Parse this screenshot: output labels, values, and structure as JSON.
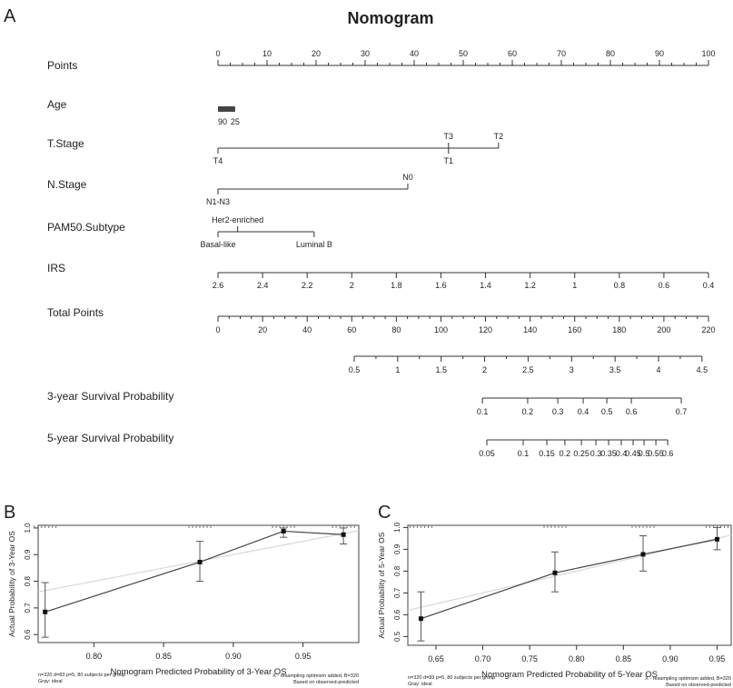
{
  "panels": {
    "a": "A",
    "b": "B",
    "c": "C"
  },
  "chart_data": [
    {
      "type": "nomogram",
      "title": "Nomogram",
      "points_axis": {
        "label": "Points",
        "min": 0,
        "max": 100,
        "ticks": [
          0,
          10,
          20,
          30,
          40,
          50,
          60,
          70,
          80,
          90,
          100
        ]
      },
      "variables": [
        {
          "label": "Age",
          "levels": [
            {
              "name": "90",
              "points": 0,
              "side": "below"
            },
            {
              "name": "25",
              "points": 3.5,
              "side": "below"
            }
          ],
          "bar": true
        },
        {
          "label": "T.Stage",
          "levels": [
            {
              "name": "T4",
              "points": 0,
              "side": "below"
            },
            {
              "name": "T3",
              "points": 47,
              "side": "above"
            },
            {
              "name": "T1",
              "points": 47,
              "side": "below"
            },
            {
              "name": "T2",
              "points": 57.2,
              "side": "above"
            }
          ]
        },
        {
          "label": "N.Stage",
          "levels": [
            {
              "name": "N1-N3",
              "points": 0,
              "side": "below"
            },
            {
              "name": "N0",
              "points": 38.7,
              "side": "above"
            }
          ]
        },
        {
          "label": "PAM50.Subtype",
          "levels": [
            {
              "name": "Basal-like",
              "points": 0,
              "side": "below"
            },
            {
              "name": "Her2-enriched",
              "points": 4,
              "side": "above"
            },
            {
              "name": "Luminal B",
              "points": 19.6,
              "side": "below"
            }
          ]
        },
        {
          "label": "IRS",
          "levels": [
            {
              "name": "2.6",
              "points": 0,
              "side": "below"
            },
            {
              "name": "2.4",
              "points": 9.09,
              "side": "below"
            },
            {
              "name": "2.2",
              "points": 18.18,
              "side": "below"
            },
            {
              "name": "2",
              "points": 27.27,
              "side": "below"
            },
            {
              "name": "1.8",
              "points": 36.36,
              "side": "below"
            },
            {
              "name": "1.6",
              "points": 45.45,
              "side": "below"
            },
            {
              "name": "1.4",
              "points": 54.55,
              "side": "below"
            },
            {
              "name": "1.2",
              "points": 63.64,
              "side": "below"
            },
            {
              "name": "1",
              "points": 72.73,
              "side": "below"
            },
            {
              "name": "0.8",
              "points": 81.82,
              "side": "below"
            },
            {
              "name": "0.6",
              "points": 90.91,
              "side": "below"
            },
            {
              "name": "0.4",
              "points": 100,
              "side": "below"
            }
          ]
        }
      ],
      "total_points_axis": {
        "label": "Total Points",
        "min": 0,
        "max": 220,
        "ticks": [
          0,
          20,
          40,
          60,
          80,
          100,
          120,
          140,
          160,
          180,
          200,
          220
        ]
      },
      "outcome_axes": [
        {
          "label": "",
          "ticks": [
            {
              "name": "0.5",
              "total": 61.1
            },
            {
              "name": "1",
              "total": 80.6
            },
            {
              "name": "1.5",
              "total": 100.1
            },
            {
              "name": "2",
              "total": 119.6
            },
            {
              "name": "2.5",
              "total": 139.1
            },
            {
              "name": "3",
              "total": 158.6
            },
            {
              "name": "3.5",
              "total": 178.1
            },
            {
              "name": "4",
              "total": 197.6
            },
            {
              "name": "4.5",
              "total": 217.1
            }
          ]
        },
        {
          "label": "3-year Survival Probability",
          "ticks": [
            {
              "name": "0.1",
              "total": 118.6
            },
            {
              "name": "0.2",
              "total": 138.9
            },
            {
              "name": "0.3",
              "total": 152.4
            },
            {
              "name": "0.4",
              "total": 163.8
            },
            {
              "name": "0.5",
              "total": 174.4
            },
            {
              "name": "0.6",
              "total": 185.4
            },
            {
              "name": "0.7",
              "total": 207.8
            }
          ]
        },
        {
          "label": "5-year Survival Probability",
          "ticks": [
            {
              "name": "0.05",
              "total": 120.6
            },
            {
              "name": "0.1",
              "total": 136.9
            },
            {
              "name": "0.15",
              "total": 147.5
            },
            {
              "name": "0.2",
              "total": 155.6
            },
            {
              "name": "0.25",
              "total": 163
            },
            {
              "name": "0.3",
              "total": 169.5
            },
            {
              "name": "0.35",
              "total": 175.2
            },
            {
              "name": "0.4",
              "total": 180.9
            },
            {
              "name": "0.45",
              "total": 186.2
            },
            {
              "name": "0.5",
              "total": 191.1
            },
            {
              "name": "0.55",
              "total": 196.4
            },
            {
              "name": "0.6",
              "total": 201.7
            }
          ]
        }
      ]
    },
    {
      "type": "scatter",
      "title": "",
      "xlabel": "Nomogram Predicted Probability of 3-Year OS",
      "ylabel": "Actual Probability of 3-Year OS",
      "xlim": [
        0.76,
        0.99
      ],
      "ylim": [
        0.57,
        1.01
      ],
      "xticks": [
        "0.80",
        "0.85",
        "0.90",
        "0.95"
      ],
      "yticks": [
        "0.6",
        "0.7",
        "0.8",
        "0.9",
        "1.0"
      ],
      "points": [
        {
          "x": 0.765,
          "y": 0.685,
          "lo": 0.59,
          "hi": 0.795
        },
        {
          "x": 0.876,
          "y": 0.872,
          "lo": 0.8,
          "hi": 0.95
        },
        {
          "x": 0.936,
          "y": 0.988,
          "lo": 0.965,
          "hi": 1.0
        },
        {
          "x": 0.979,
          "y": 0.975,
          "lo": 0.94,
          "hi": 1.0
        }
      ],
      "ideal_line": true,
      "note_left": [
        "n=320 d=83 p=5, 80 subjects per group",
        "Gray: ideal"
      ],
      "note_right": [
        "X - resampling optimism added, B=320",
        "Based on observed-predicted"
      ],
      "ideal_color": "#d8d8d8",
      "line_color": "#444444"
    },
    {
      "type": "scatter",
      "title": "",
      "xlabel": "Nomogram Predicted Probability of 5-Year OS",
      "ylabel": "Actual Probability of 5-Year OS",
      "xlim": [
        0.62,
        0.965
      ],
      "ylim": [
        0.46,
        1.01
      ],
      "xticks": [
        "0.65",
        "0.70",
        "0.75",
        "0.80",
        "0.85",
        "0.90",
        "0.95"
      ],
      "yticks": [
        "0.5",
        "0.6",
        "0.7",
        "0.8",
        "0.9",
        "1.0"
      ],
      "points": [
        {
          "x": 0.634,
          "y": 0.582,
          "lo": 0.48,
          "hi": 0.705
        },
        {
          "x": 0.777,
          "y": 0.792,
          "lo": 0.705,
          "hi": 0.888
        },
        {
          "x": 0.871,
          "y": 0.877,
          "lo": 0.8,
          "hi": 0.962
        },
        {
          "x": 0.95,
          "y": 0.946,
          "lo": 0.898,
          "hi": 1.0
        }
      ],
      "ideal_line": true,
      "note_left": [
        "n=320 d=83 p=5, 80 subjects per group",
        "Gray: ideal"
      ],
      "note_right": [
        "X - resampling optimism added, B=320",
        "Based on observed-predicted"
      ],
      "ideal_color": "#d8d8d8",
      "line_color": "#444444"
    }
  ]
}
